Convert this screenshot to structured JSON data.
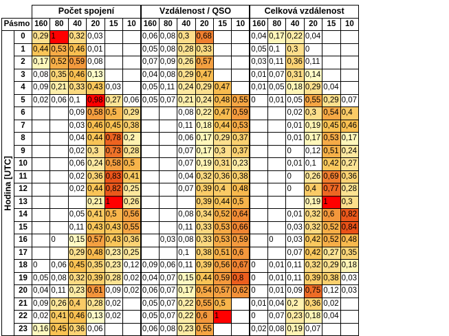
{
  "chart_data": {
    "type": "heatmap",
    "corner_label": "Pásmo",
    "ylabel": "Hodina [UTC]",
    "bands": [
      "160",
      "80",
      "40",
      "20",
      "15",
      "10"
    ],
    "hours": [
      "0",
      "1",
      "2",
      "3",
      "4",
      "5",
      "6",
      "7",
      "8",
      "9",
      "10",
      "11",
      "12",
      "13",
      "14",
      "15",
      "16",
      "17",
      "18",
      "19",
      "20",
      "21",
      "22",
      "23"
    ],
    "color_scale": {
      "low": "#ffffcc",
      "mid": "#f9c253",
      "high": "#e8410f",
      "max": "#ff0000"
    },
    "groups": [
      {
        "title": "Počet spojení",
        "rows": [
          [
            "0,29",
            "1",
            "0,32",
            "0,03",
            "",
            ""
          ],
          [
            "0,44",
            "0,53",
            "0,46",
            "0,01",
            "",
            ""
          ],
          [
            "0,17",
            "0,52",
            "0,59",
            "0,08",
            "",
            ""
          ],
          [
            "0,08",
            "0,35",
            "0,46",
            "0,13",
            "",
            ""
          ],
          [
            "0,09",
            "0,21",
            "0,33",
            "0,43",
            "0,03",
            ""
          ],
          [
            "0,02",
            "0,06",
            "0,1",
            "0,98",
            "0,27",
            "0,06"
          ],
          [
            "",
            "",
            "0,09",
            "0,58",
            "0,5",
            "0,29"
          ],
          [
            "",
            "",
            "0,03",
            "0,46",
            "0,45",
            "0,38"
          ],
          [
            "",
            "",
            "0,04",
            "0,44",
            "0,78",
            "0,2"
          ],
          [
            "",
            "",
            "0,02",
            "0,3",
            "0,73",
            "0,28"
          ],
          [
            "",
            "",
            "0,06",
            "0,24",
            "0,58",
            "0,5"
          ],
          [
            "",
            "",
            "0,02",
            "0,36",
            "0,83",
            "0,41"
          ],
          [
            "",
            "",
            "0,02",
            "0,44",
            "0,82",
            "0,25"
          ],
          [
            "",
            "",
            "",
            "0,21",
            "1",
            "0,26"
          ],
          [
            "",
            "",
            "0,05",
            "0,41",
            "0,5",
            "0,56"
          ],
          [
            "",
            "",
            "0,11",
            "0,43",
            "0,43",
            "0,55"
          ],
          [
            "",
            "0",
            "0,15",
            "0,57",
            "0,43",
            "0,36"
          ],
          [
            "",
            "",
            "0,29",
            "0,48",
            "0,23",
            "0,25"
          ],
          [
            "0",
            "0,06",
            "0,45",
            "0,35",
            "0,23",
            "0,12"
          ],
          [
            "0,05",
            "0,08",
            "0,32",
            "0,39",
            "0,28",
            "0,02"
          ],
          [
            "0,04",
            "0,11",
            "0,23",
            "0,61",
            "0,09",
            "0,02"
          ],
          [
            "0,09",
            "0,26",
            "0,4",
            "0,28",
            "0,02",
            ""
          ],
          [
            "0,02",
            "0,41",
            "0,46",
            "0,13",
            "0,02",
            ""
          ],
          [
            "0,16",
            "0,45",
            "0,36",
            "0,06",
            "",
            ""
          ]
        ]
      },
      {
        "title": "Vzdálenost / QSO",
        "rows": [
          [
            "0,06",
            "0,08",
            "0,3",
            "0,68",
            "",
            ""
          ],
          [
            "0,05",
            "0,08",
            "0,28",
            "0,33",
            "",
            ""
          ],
          [
            "0,07",
            "0,09",
            "0,26",
            "0,57",
            "",
            ""
          ],
          [
            "0,04",
            "0,08",
            "0,29",
            "0,47",
            "",
            ""
          ],
          [
            "0,05",
            "0,11",
            "0,24",
            "0,29",
            "0,47",
            ""
          ],
          [
            "0,05",
            "0,07",
            "0,21",
            "0,24",
            "0,48",
            "0,55"
          ],
          [
            "",
            "",
            "0,08",
            "0,22",
            "0,47",
            "0,59"
          ],
          [
            "",
            "",
            "0,11",
            "0,18",
            "0,44",
            "0,53"
          ],
          [
            "",
            "",
            "0,06",
            "0,17",
            "0,29",
            "0,37"
          ],
          [
            "",
            "",
            "0,07",
            "0,17",
            "0,3",
            "0,37"
          ],
          [
            "",
            "",
            "0,07",
            "0,19",
            "0,31",
            "0,23"
          ],
          [
            "",
            "",
            "0,04",
            "0,32",
            "0,36",
            "0,38"
          ],
          [
            "",
            "",
            "0,07",
            "0,39",
            "0,4",
            "0,48"
          ],
          [
            "",
            "",
            "",
            "0,39",
            "0,44",
            "0,5"
          ],
          [
            "",
            "",
            "0,08",
            "0,34",
            "0,52",
            "0,64"
          ],
          [
            "",
            "",
            "0,11",
            "0,33",
            "0,53",
            "0,66"
          ],
          [
            "",
            "0,03",
            "0,08",
            "0,33",
            "0,53",
            "0,59"
          ],
          [
            "",
            "",
            "0,1",
            "0,38",
            "0,51",
            "0,6"
          ],
          [
            "0,09",
            "0,06",
            "0,11",
            "0,39",
            "0,56",
            "0,67"
          ],
          [
            "0,04",
            "0,07",
            "0,15",
            "0,44",
            "0,59",
            "0,8"
          ],
          [
            "0,06",
            "0,07",
            "0,17",
            "0,54",
            "0,57",
            "0,62"
          ],
          [
            "0,05",
            "0,07",
            "0,22",
            "0,55",
            "0,5",
            ""
          ],
          [
            "0,05",
            "0,07",
            "0,22",
            "0,6",
            "1",
            ""
          ],
          [
            "0,06",
            "0,08",
            "0,23",
            "0,55",
            "",
            ""
          ]
        ]
      },
      {
        "title": "Celková vzdálenost",
        "rows": [
          [
            "0,04",
            "0,17",
            "0,22",
            "0,04",
            "",
            ""
          ],
          [
            "0,05",
            "0,1",
            "0,3",
            "0",
            "",
            ""
          ],
          [
            "0,03",
            "0,11",
            "0,36",
            "0,11",
            "",
            ""
          ],
          [
            "0,01",
            "0,07",
            "0,31",
            "0,14",
            "",
            ""
          ],
          [
            "0,01",
            "0,05",
            "0,18",
            "0,29",
            "0,04",
            ""
          ],
          [
            "0",
            "0,01",
            "0,05",
            "0,55",
            "0,29",
            "0,07"
          ],
          [
            "",
            "",
            "0,02",
            "0,3",
            "0,54",
            "0,4"
          ],
          [
            "",
            "",
            "0,01",
            "0,19",
            "0,45",
            "0,46"
          ],
          [
            "",
            "",
            "0,01",
            "0,17",
            "0,53",
            "0,17"
          ],
          [
            "",
            "",
            "0",
            "0,12",
            "0,51",
            "0,24"
          ],
          [
            "",
            "",
            "0,01",
            "0,1",
            "0,42",
            "0,27"
          ],
          [
            "",
            "",
            "0",
            "0,26",
            "0,69",
            "0,36"
          ],
          [
            "",
            "",
            "0",
            "0,4",
            "0,77",
            "0,28"
          ],
          [
            "",
            "",
            "",
            "0,19",
            "1",
            "0,3"
          ],
          [
            "",
            "",
            "0,01",
            "0,32",
            "0,6",
            "0,82"
          ],
          [
            "",
            "",
            "0,03",
            "0,32",
            "0,52",
            "0,84"
          ],
          [
            "",
            "0",
            "0,03",
            "0,42",
            "0,52",
            "0,48"
          ],
          [
            "",
            "",
            "0,07",
            "0,42",
            "0,27",
            "0,35"
          ],
          [
            "0",
            "0,01",
            "0,11",
            "0,32",
            "0,29",
            "0,18"
          ],
          [
            "0",
            "0,01",
            "0,11",
            "0,39",
            "0,38",
            "0,03"
          ],
          [
            "0",
            "0,01",
            "0,09",
            "0,75",
            "0,12",
            "0,03"
          ],
          [
            "0,01",
            "0,04",
            "0,2",
            "0,36",
            "0,02",
            ""
          ],
          [
            "0",
            "0,07",
            "0,23",
            "0,18",
            "0,04",
            ""
          ],
          [
            "0,02",
            "0,08",
            "0,19",
            "0,07",
            "",
            ""
          ]
        ]
      }
    ]
  }
}
